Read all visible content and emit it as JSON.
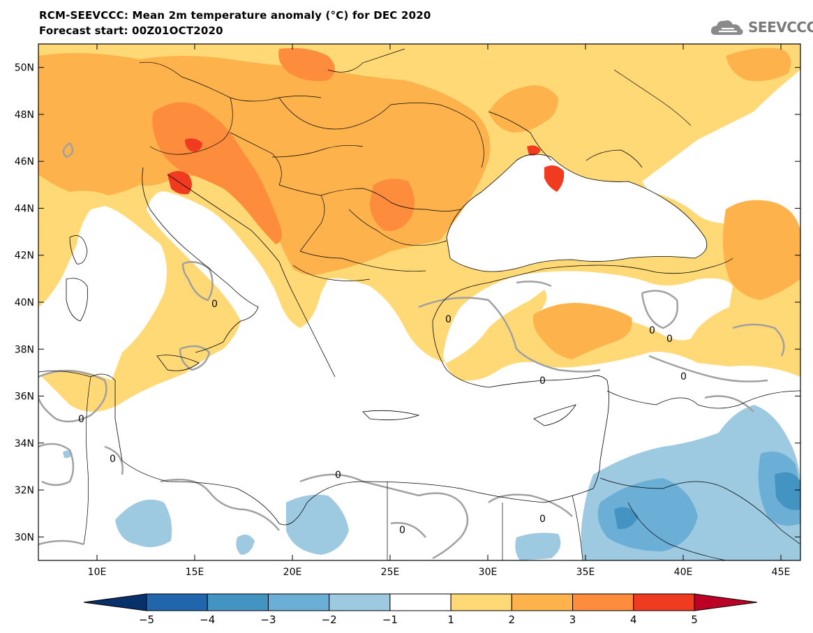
{
  "title": {
    "line1": "RCM-SEEVCCC: Mean 2m temperature anomaly (°C) for DEC 2020",
    "line2": "Forecast start: 00Z01OCT2020"
  },
  "logo": {
    "icon": "cloud-icon",
    "text": "SEEVCCC"
  },
  "map": {
    "lon_range": [
      7,
      46
    ],
    "lat_range": [
      29,
      51
    ],
    "lat_ticks": [
      {
        "value": 30,
        "label": "30N"
      },
      {
        "value": 32,
        "label": "32N"
      },
      {
        "value": 34,
        "label": "34N"
      },
      {
        "value": 36,
        "label": "36N"
      },
      {
        "value": 38,
        "label": "38N"
      },
      {
        "value": 40,
        "label": "40N"
      },
      {
        "value": 42,
        "label": "42N"
      },
      {
        "value": 44,
        "label": "44N"
      },
      {
        "value": 46,
        "label": "46N"
      },
      {
        "value": 48,
        "label": "48N"
      },
      {
        "value": 50,
        "label": "50N"
      }
    ],
    "lon_ticks": [
      {
        "value": 10,
        "label": "10E"
      },
      {
        "value": 15,
        "label": "15E"
      },
      {
        "value": 20,
        "label": "20E"
      },
      {
        "value": 25,
        "label": "25E"
      },
      {
        "value": 30,
        "label": "30E"
      },
      {
        "value": 35,
        "label": "35E"
      },
      {
        "value": 40,
        "label": "40E"
      },
      {
        "value": 45,
        "label": "45E"
      }
    ],
    "zero_contour_label": "0"
  },
  "colorbar": {
    "labels": [
      "−5",
      "−4",
      "−3",
      "−2",
      "−1",
      "1",
      "2",
      "3",
      "4",
      "5"
    ],
    "colors": [
      "#08306b",
      "#2166ac",
      "#4393c3",
      "#6baed6",
      "#9ecae1",
      "#ffffff",
      "#fed976",
      "#feb24c",
      "#fd8d3c",
      "#f03b20",
      "#bd0026"
    ]
  },
  "colors": {
    "anom_1_2": "#fed976",
    "anom_2_3": "#feb24c",
    "anom_3_4": "#fd8d3c",
    "anom_4_5": "#f03b20",
    "anom_gt5": "#d7191c",
    "neg_1_2": "#9ecae1",
    "neg_2_3": "#6baed6",
    "neg_3_4": "#4393c3",
    "contour_zero": "#a0a0a0"
  }
}
